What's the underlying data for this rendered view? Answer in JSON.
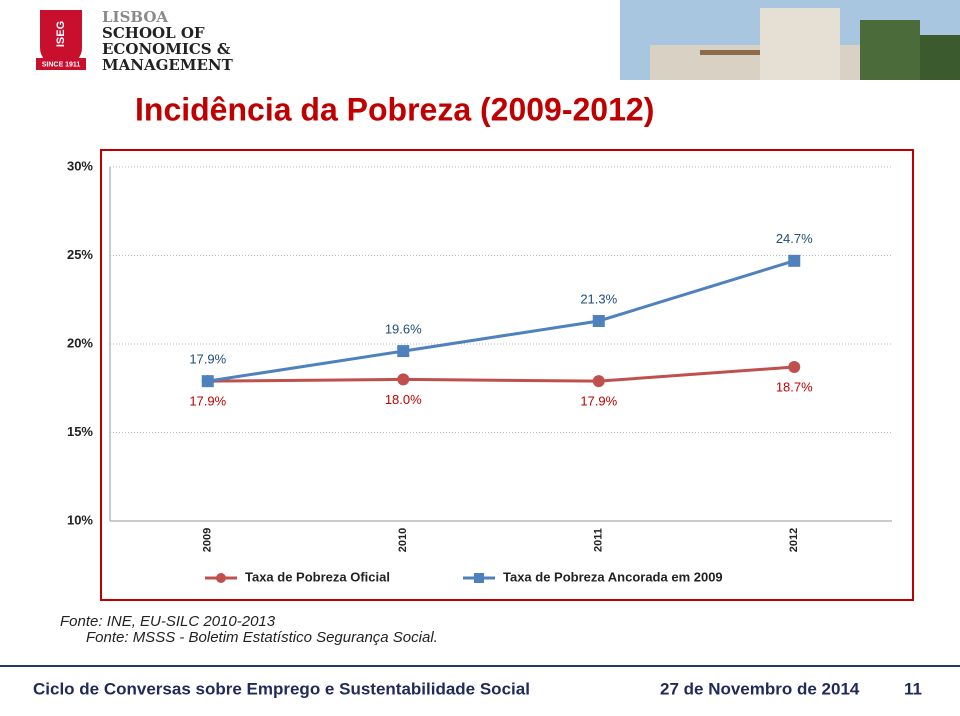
{
  "header": {
    "shield": "ISEG",
    "since": "SINCE 1911",
    "school": [
      "LISBOA",
      "SCHOOL OF",
      "ECONOMICS &",
      "MANAGEMENT"
    ]
  },
  "chart_data": {
    "type": "line",
    "title": "Incidência da Pobreza (2009-2012)",
    "categories": [
      "2009",
      "2010",
      "2011",
      "2012"
    ],
    "series": [
      {
        "name": "Taxa de Pobreza Oficial",
        "color": "#c0504d",
        "values": [
          17.9,
          18.0,
          17.9,
          18.7
        ],
        "value_labels": [
          "17.9%",
          "18.0%",
          "17.9%",
          "18.7%"
        ]
      },
      {
        "name": "Taxa de Pobreza Ancorada em 2009",
        "color": "#4f81bd",
        "values": [
          17.9,
          19.6,
          21.3,
          24.7
        ],
        "value_labels": [
          "17.9%",
          "19.6%",
          "21.3%",
          "24.7%"
        ]
      }
    ],
    "ylim": [
      10,
      30
    ],
    "yticks": [
      {
        "value": 10,
        "label": "10%"
      },
      {
        "value": 15,
        "label": "15%"
      },
      {
        "value": 20,
        "label": "20%"
      },
      {
        "value": 25,
        "label": "25%"
      },
      {
        "value": 30,
        "label": "30%"
      }
    ],
    "grid": true,
    "legend": "bottom"
  },
  "sources": [
    "Fonte: INE, EU-SILC 2010-2013",
    "Fonte: MSSS - Boletim Estatístico Segurança Social."
  ],
  "footer": {
    "event": "Ciclo de Conversas sobre Emprego e Sustentabilidade Social",
    "date": "27 de Novembro de 2014",
    "page": "11"
  }
}
